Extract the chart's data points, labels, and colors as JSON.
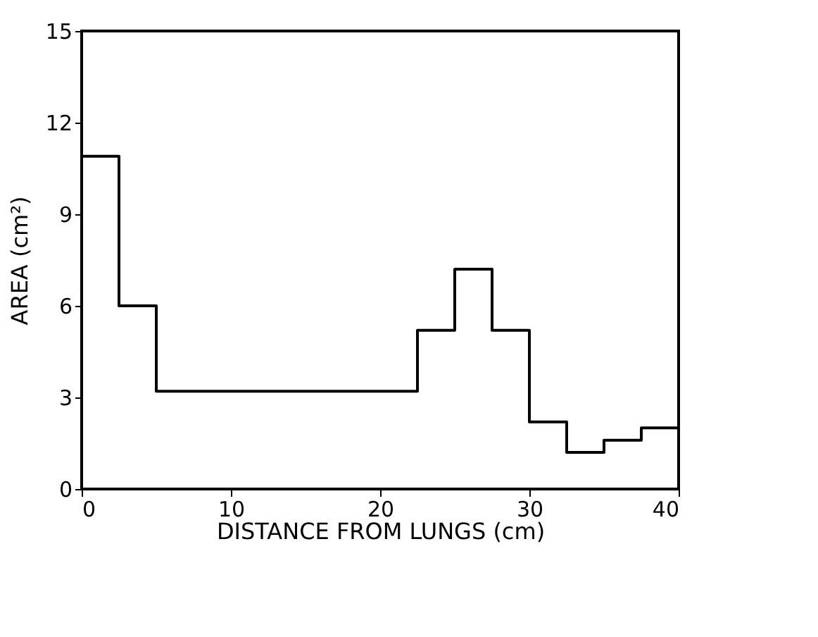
{
  "chart_data": {
    "type": "histogram",
    "bins": [
      0,
      2.5,
      5,
      22.5,
      25,
      27.5,
      30,
      32.5,
      35,
      37.5,
      40
    ],
    "values": [
      10.9,
      6.0,
      3.2,
      5.2,
      7.2,
      5.2,
      2.2,
      1.2,
      1.6,
      2.0
    ],
    "color": "#000000",
    "xlabel": "DISTANCE FROM LUNGS (cm)",
    "ylabel": "AREA (cm²)",
    "xlim": [
      0,
      40
    ],
    "xticks": [
      0,
      10,
      20,
      30,
      40
    ],
    "ylim": [
      0,
      15
    ],
    "yticks": [
      0,
      3,
      6,
      9,
      12,
      15
    ],
    "grid": false
  }
}
